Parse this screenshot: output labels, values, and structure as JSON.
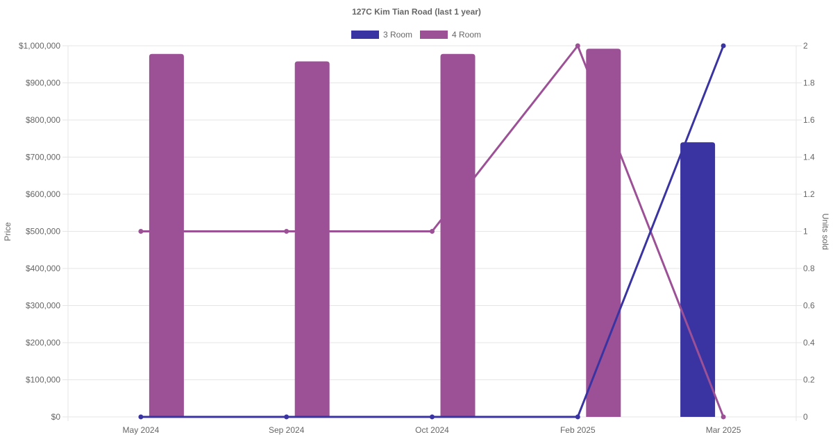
{
  "chart_data": {
    "type": "bar",
    "title": "127C Kim Tian Road (last 1 year)",
    "categories": [
      "May 2024",
      "Sep 2024",
      "Oct 2024",
      "Feb 2025",
      "Mar 2025"
    ],
    "y_left": {
      "label": "Price",
      "ticks": [
        "$0",
        "$100,000",
        "$200,000",
        "$300,000",
        "$400,000",
        "$500,000",
        "$600,000",
        "$700,000",
        "$800,000",
        "$900,000",
        "$1,000,000"
      ],
      "range": [
        0,
        1000000
      ]
    },
    "y_right": {
      "label": "Units sold",
      "ticks": [
        "0",
        "0.2",
        "0.4",
        "0.6",
        "0.8",
        "1",
        "1.2",
        "1.4",
        "1.6",
        "1.8",
        "2"
      ],
      "range": [
        0,
        2
      ]
    },
    "series": [
      {
        "name": "3 Room",
        "color": "#3934a1",
        "price": [
          null,
          null,
          null,
          null,
          740000
        ],
        "units_sold": [
          0,
          0,
          0,
          0,
          2
        ]
      },
      {
        "name": "4 Room",
        "color": "#9c5196",
        "price": [
          978000,
          958000,
          978000,
          992000,
          null
        ],
        "units_sold": [
          1,
          1,
          1,
          2,
          0
        ]
      }
    ],
    "legend_position": "top",
    "grid": true
  }
}
